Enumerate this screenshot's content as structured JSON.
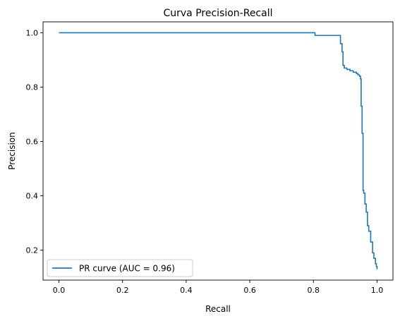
{
  "chart_data": {
    "type": "line",
    "title": "Curva Precision-Recall",
    "xlabel": "Recall",
    "ylabel": "Precision",
    "xlim": [
      -0.05,
      1.05
    ],
    "ylim": [
      0.09,
      1.04
    ],
    "xticks": [
      0.0,
      0.2,
      0.4,
      0.6,
      0.8,
      1.0
    ],
    "xtick_labels": [
      "0.0",
      "0.2",
      "0.4",
      "0.6",
      "0.8",
      "1.0"
    ],
    "yticks": [
      0.2,
      0.4,
      0.6,
      0.8,
      1.0
    ],
    "ytick_labels": [
      "0.2",
      "0.4",
      "0.6",
      "0.8",
      "1.0"
    ],
    "grid": false,
    "legend_position": "lower-left",
    "series": [
      {
        "name": "PR curve (AUC = 0.96)",
        "color": "#1f77b4",
        "step": "post",
        "points": [
          [
            0.0,
            1.0
          ],
          [
            0.805,
            1.0
          ],
          [
            0.805,
            0.99
          ],
          [
            0.885,
            0.99
          ],
          [
            0.885,
            0.96
          ],
          [
            0.89,
            0.96
          ],
          [
            0.89,
            0.93
          ],
          [
            0.893,
            0.93
          ],
          [
            0.893,
            0.88
          ],
          [
            0.897,
            0.88
          ],
          [
            0.897,
            0.87
          ],
          [
            0.905,
            0.87
          ],
          [
            0.905,
            0.865
          ],
          [
            0.915,
            0.865
          ],
          [
            0.915,
            0.86
          ],
          [
            0.925,
            0.86
          ],
          [
            0.925,
            0.855
          ],
          [
            0.935,
            0.855
          ],
          [
            0.935,
            0.85
          ],
          [
            0.94,
            0.85
          ],
          [
            0.94,
            0.845
          ],
          [
            0.945,
            0.845
          ],
          [
            0.945,
            0.84
          ],
          [
            0.948,
            0.84
          ],
          [
            0.948,
            0.83
          ],
          [
            0.95,
            0.83
          ],
          [
            0.95,
            0.73
          ],
          [
            0.953,
            0.73
          ],
          [
            0.953,
            0.63
          ],
          [
            0.956,
            0.63
          ],
          [
            0.956,
            0.42
          ],
          [
            0.958,
            0.42
          ],
          [
            0.958,
            0.41
          ],
          [
            0.962,
            0.41
          ],
          [
            0.962,
            0.37
          ],
          [
            0.966,
            0.37
          ],
          [
            0.966,
            0.34
          ],
          [
            0.97,
            0.34
          ],
          [
            0.97,
            0.29
          ],
          [
            0.974,
            0.29
          ],
          [
            0.974,
            0.27
          ],
          [
            0.98,
            0.27
          ],
          [
            0.98,
            0.23
          ],
          [
            0.986,
            0.23
          ],
          [
            0.986,
            0.19
          ],
          [
            0.99,
            0.19
          ],
          [
            0.99,
            0.17
          ],
          [
            0.995,
            0.17
          ],
          [
            0.995,
            0.15
          ],
          [
            0.998,
            0.15
          ],
          [
            0.998,
            0.14
          ],
          [
            1.0,
            0.14
          ],
          [
            1.0,
            0.13
          ]
        ]
      }
    ]
  }
}
